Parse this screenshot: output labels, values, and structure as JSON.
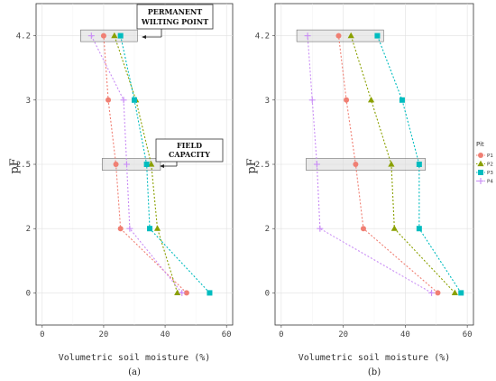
{
  "colors": {
    "P1": "#f07f73",
    "P2": "#8aa000",
    "P3": "#00bcbf",
    "P4": "#c98df5",
    "band_fill": "#d9d9d9",
    "band_stroke": "#555555",
    "grid": "#e0e0e0",
    "panel_border": "#333333"
  },
  "legend": {
    "title": "Pit",
    "items": [
      {
        "label": "P1",
        "marker": "circle"
      },
      {
        "label": "P2",
        "marker": "triangle"
      },
      {
        "label": "P3",
        "marker": "square"
      },
      {
        "label": "P4",
        "marker": "cross"
      }
    ]
  },
  "chart_data": [
    {
      "type": "line",
      "panel_label": "(a)",
      "xlabel": "Volumetric soil moisture (%)",
      "ylabel": "pF",
      "xlim": [
        -2,
        62
      ],
      "x_ticks": [
        0,
        20,
        40,
        60
      ],
      "y_categories": [
        "0",
        "2",
        "2.5",
        "3",
        "4.2"
      ],
      "grid": true,
      "series": [
        {
          "name": "P1",
          "marker": "circle",
          "values": [
            {
              "x": 47,
              "y": "0"
            },
            {
              "x": 25.5,
              "y": "2"
            },
            {
              "x": 24,
              "y": "2.5"
            },
            {
              "x": 21.5,
              "y": "3"
            },
            {
              "x": 20,
              "y": "4.2"
            }
          ]
        },
        {
          "name": "P2",
          "marker": "triangle",
          "values": [
            {
              "x": 44,
              "y": "0"
            },
            {
              "x": 37.5,
              "y": "2"
            },
            {
              "x": 35.5,
              "y": "2.5"
            },
            {
              "x": 30.5,
              "y": "3"
            },
            {
              "x": 23.5,
              "y": "4.2"
            }
          ]
        },
        {
          "name": "P3",
          "marker": "square",
          "values": [
            {
              "x": 54.5,
              "y": "0"
            },
            {
              "x": 35,
              "y": "2"
            },
            {
              "x": 34,
              "y": "2.5"
            },
            {
              "x": 30,
              "y": "3"
            },
            {
              "x": 25.5,
              "y": "4.2"
            }
          ]
        },
        {
          "name": "P4",
          "marker": "cross",
          "values": [
            {
              "x": 45.5,
              "y": "0"
            },
            {
              "x": 28.5,
              "y": "2"
            },
            {
              "x": 27.5,
              "y": "2.5"
            },
            {
              "x": 26.5,
              "y": "3"
            },
            {
              "x": 16,
              "y": "4.2"
            }
          ]
        }
      ],
      "bands": [
        {
          "y": "4.2",
          "x_from": 12.5,
          "x_to": 31
        },
        {
          "y": "2.5",
          "x_from": 19.5,
          "x_to": 38.5
        }
      ],
      "annotations": [
        {
          "lines": [
            "PERMANENT",
            "WILTING POINT"
          ],
          "points_to": "4.2"
        },
        {
          "lines": [
            "FIELD",
            "CAPACITY"
          ],
          "points_to": "2.5"
        }
      ]
    },
    {
      "type": "line",
      "panel_label": "(b)",
      "xlabel": "Volumetric soil moisture (%)",
      "ylabel": "pF",
      "xlim": [
        -2,
        62
      ],
      "x_ticks": [
        0,
        20,
        40,
        60
      ],
      "y_categories": [
        "0",
        "2",
        "2.5",
        "3",
        "4.2"
      ],
      "grid": true,
      "series": [
        {
          "name": "P1",
          "marker": "circle",
          "values": [
            {
              "x": 50.5,
              "y": "0"
            },
            {
              "x": 26.5,
              "y": "2"
            },
            {
              "x": 24,
              "y": "2.5"
            },
            {
              "x": 21,
              "y": "3"
            },
            {
              "x": 18.5,
              "y": "4.2"
            }
          ]
        },
        {
          "name": "P2",
          "marker": "triangle",
          "values": [
            {
              "x": 56,
              "y": "0"
            },
            {
              "x": 36.5,
              "y": "2"
            },
            {
              "x": 35.5,
              "y": "2.5"
            },
            {
              "x": 29,
              "y": "3"
            },
            {
              "x": 22.5,
              "y": "4.2"
            }
          ]
        },
        {
          "name": "P3",
          "marker": "square",
          "values": [
            {
              "x": 58,
              "y": "0"
            },
            {
              "x": 44.5,
              "y": "2"
            },
            {
              "x": 44.5,
              "y": "2.5"
            },
            {
              "x": 39,
              "y": "3"
            },
            {
              "x": 31,
              "y": "4.2"
            }
          ]
        },
        {
          "name": "P4",
          "marker": "cross",
          "values": [
            {
              "x": 48.5,
              "y": "0"
            },
            {
              "x": 12.5,
              "y": "2"
            },
            {
              "x": 11.5,
              "y": "2.5"
            },
            {
              "x": 10,
              "y": "3"
            },
            {
              "x": 8.5,
              "y": "4.2"
            }
          ]
        }
      ],
      "bands": [
        {
          "y": "4.2",
          "x_from": 5,
          "x_to": 33
        },
        {
          "y": "2.5",
          "x_from": 8,
          "x_to": 46.5
        }
      ],
      "annotations": []
    }
  ]
}
